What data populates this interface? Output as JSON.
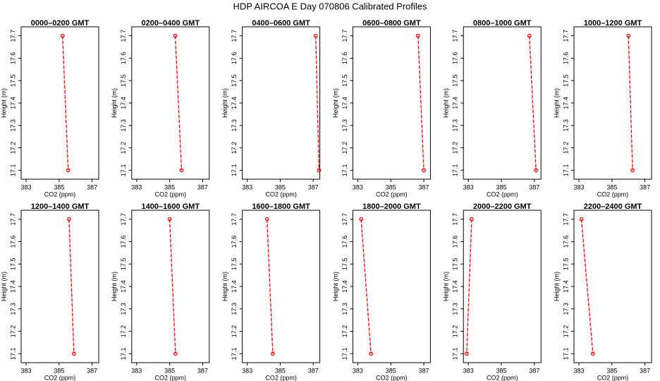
{
  "title": "HDP AIRCOA E  Day 070806  Calibrated Profiles",
  "chart_data": [
    {
      "type": "line",
      "title": "0000–0200 GMT",
      "xlabel": "CO2 (ppm)",
      "ylabel": "Height (m)",
      "color": "#ff0000",
      "x": [
        385.21,
        385.55
      ],
      "values": [
        17.7,
        17.1
      ],
      "xlim": [
        382.7,
        387.4
      ],
      "ylim": [
        17.06,
        17.74
      ],
      "xticks": [
        383,
        385,
        387
      ],
      "yticks": [
        17.1,
        17.2,
        17.3,
        17.4,
        17.5,
        17.6,
        17.7
      ]
    },
    {
      "type": "line",
      "title": "0200–0400 GMT",
      "xlabel": "CO2 (ppm)",
      "ylabel": "Height (m)",
      "color": "#ff0000",
      "x": [
        385.34,
        385.72
      ],
      "values": [
        17.7,
        17.1
      ],
      "xlim": [
        382.7,
        387.4
      ],
      "ylim": [
        17.06,
        17.74
      ],
      "xticks": [
        383,
        385,
        387
      ],
      "yticks": [
        17.1,
        17.2,
        17.3,
        17.4,
        17.5,
        17.6,
        17.7
      ]
    },
    {
      "type": "line",
      "title": "0400–0600 GMT",
      "xlabel": "CO2 (ppm)",
      "ylabel": "Height (m)",
      "color": "#ff0000",
      "x": [
        387.15,
        387.35
      ],
      "values": [
        17.7,
        17.1
      ],
      "xlim": [
        382.7,
        387.4
      ],
      "ylim": [
        17.06,
        17.74
      ],
      "xticks": [
        383,
        385,
        387
      ],
      "yticks": [
        17.1,
        17.2,
        17.3,
        17.4,
        17.5,
        17.6,
        17.7
      ]
    },
    {
      "type": "line",
      "title": "0600–0800 GMT",
      "xlabel": "CO2 (ppm)",
      "ylabel": "Height (m)",
      "color": "#ff0000",
      "x": [
        386.65,
        387.0
      ],
      "values": [
        17.7,
        17.1
      ],
      "xlim": [
        382.7,
        387.4
      ],
      "ylim": [
        17.06,
        17.74
      ],
      "xticks": [
        383,
        385,
        387
      ],
      "yticks": [
        17.1,
        17.2,
        17.3,
        17.4,
        17.5,
        17.6,
        17.7
      ]
    },
    {
      "type": "line",
      "title": "0800–1000 GMT",
      "xlabel": "CO2 (ppm)",
      "ylabel": "Height (m)",
      "color": "#ff0000",
      "x": [
        386.7,
        387.1
      ],
      "values": [
        17.7,
        17.1
      ],
      "xlim": [
        382.7,
        387.4
      ],
      "ylim": [
        17.06,
        17.74
      ],
      "xticks": [
        383,
        385,
        387
      ],
      "yticks": [
        17.1,
        17.2,
        17.3,
        17.4,
        17.5,
        17.6,
        17.7
      ]
    },
    {
      "type": "line",
      "title": "1000–1200 GMT",
      "xlabel": "CO2 (ppm)",
      "ylabel": "Height (m)",
      "color": "#ff0000",
      "x": [
        386.0,
        386.25
      ],
      "values": [
        17.7,
        17.1
      ],
      "xlim": [
        382.7,
        387.4
      ],
      "ylim": [
        17.06,
        17.74
      ],
      "xticks": [
        383,
        385,
        387
      ],
      "yticks": [
        17.1,
        17.2,
        17.3,
        17.4,
        17.5,
        17.6,
        17.7
      ]
    },
    {
      "type": "line",
      "title": "1200–1400 GMT",
      "xlabel": "CO2 (ppm)",
      "ylabel": "Height (m)",
      "color": "#ff0000",
      "x": [
        385.6,
        385.9
      ],
      "values": [
        17.7,
        17.1
      ],
      "xlim": [
        382.7,
        387.4
      ],
      "ylim": [
        17.06,
        17.74
      ],
      "xticks": [
        383,
        385,
        387
      ],
      "yticks": [
        17.1,
        17.2,
        17.3,
        17.4,
        17.5,
        17.6,
        17.7
      ]
    },
    {
      "type": "line",
      "title": "1400–1600 GMT",
      "xlabel": "CO2 (ppm)",
      "ylabel": "Height (m)",
      "color": "#ff0000",
      "x": [
        385.0,
        385.35
      ],
      "values": [
        17.7,
        17.1
      ],
      "xlim": [
        382.7,
        387.4
      ],
      "ylim": [
        17.06,
        17.74
      ],
      "xticks": [
        383,
        385,
        387
      ],
      "yticks": [
        17.1,
        17.2,
        17.3,
        17.4,
        17.5,
        17.6,
        17.7
      ]
    },
    {
      "type": "line",
      "title": "1600–1800 GMT",
      "xlabel": "CO2 (ppm)",
      "ylabel": "Height (m)",
      "color": "#ff0000",
      "x": [
        384.2,
        384.55
      ],
      "values": [
        17.7,
        17.1
      ],
      "xlim": [
        382.7,
        387.4
      ],
      "ylim": [
        17.06,
        17.74
      ],
      "xticks": [
        383,
        385,
        387
      ],
      "yticks": [
        17.1,
        17.2,
        17.3,
        17.4,
        17.5,
        17.6,
        17.7
      ]
    },
    {
      "type": "line",
      "title": "1800–2000 GMT",
      "xlabel": "CO2 (ppm)",
      "ylabel": "Height (m)",
      "color": "#ff0000",
      "x": [
        383.2,
        383.8
      ],
      "values": [
        17.7,
        17.1
      ],
      "xlim": [
        382.7,
        387.4
      ],
      "ylim": [
        17.06,
        17.74
      ],
      "xticks": [
        383,
        385,
        387
      ],
      "yticks": [
        17.1,
        17.2,
        17.3,
        17.4,
        17.5,
        17.6,
        17.7
      ]
    },
    {
      "type": "line",
      "title": "2000–2200 GMT",
      "xlabel": "CO2 (ppm)",
      "ylabel": "Height (m)",
      "color": "#ff0000",
      "x": [
        383.2,
        382.9
      ],
      "values": [
        17.7,
        17.1
      ],
      "xlim": [
        382.7,
        387.4
      ],
      "ylim": [
        17.06,
        17.74
      ],
      "xticks": [
        383,
        385,
        387
      ],
      "yticks": [
        17.1,
        17.2,
        17.3,
        17.4,
        17.5,
        17.6,
        17.7
      ]
    },
    {
      "type": "line",
      "title": "2200–2400 GMT",
      "xlabel": "CO2 (ppm)",
      "ylabel": "Height (m)",
      "color": "#ff0000",
      "x": [
        383.15,
        383.85
      ],
      "values": [
        17.7,
        17.1
      ],
      "xlim": [
        382.7,
        387.4
      ],
      "ylim": [
        17.06,
        17.74
      ],
      "xticks": [
        383,
        385,
        387
      ],
      "yticks": [
        17.1,
        17.2,
        17.3,
        17.4,
        17.5,
        17.6,
        17.7
      ]
    }
  ]
}
